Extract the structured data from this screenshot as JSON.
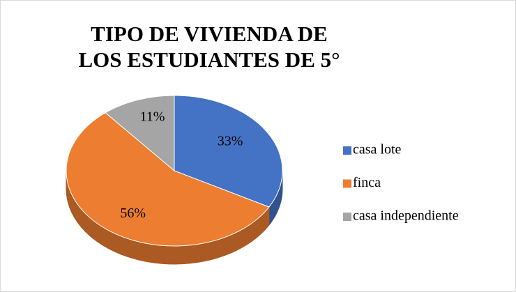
{
  "chart_data": {
    "type": "pie",
    "title": "TIPO DE VIVIENDA DE LOS ESTUDIANTES DE 5°",
    "categories": [
      "casa lote",
      "finca",
      "casa independiente"
    ],
    "values": [
      33,
      56,
      11
    ],
    "value_labels": [
      "33%",
      "56%",
      "11%"
    ],
    "colors": [
      "#4472c4",
      "#ed7d31",
      "#a5a5a5"
    ],
    "legend": "right"
  }
}
